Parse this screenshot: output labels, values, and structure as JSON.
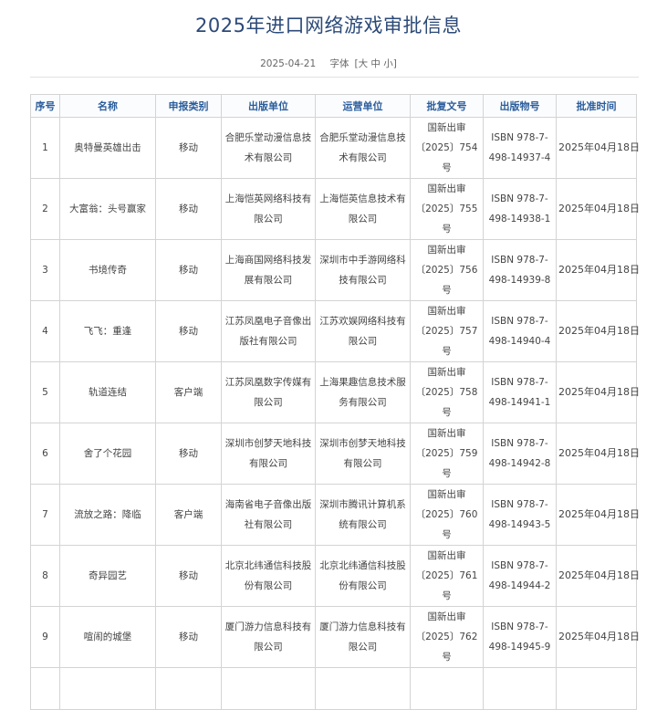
{
  "page": {
    "title": "2025年进口网络游戏审批信息",
    "date": "2025-04-21",
    "font_size_label": "字体",
    "font_size_options": "[大 中 小]"
  },
  "table": {
    "headers": [
      "序号",
      "名称",
      "申报类别",
      "出版单位",
      "运营单位",
      "批复文号",
      "出版物号",
      "批准时间"
    ],
    "rows": [
      [
        "1",
        "奥特曼英雄出击",
        "移动",
        "合肥乐堂动漫信息技术有限公司",
        "合肥乐堂动漫信息技术有限公司",
        "国新出审〔2025〕754号",
        "ISBN 978-7-498-14937-4",
        "2025年04月18日"
      ],
      [
        "2",
        "大富翁：头号赢家",
        "移动",
        "上海恺英网络科技有限公司",
        "上海恺英信息技术有限公司",
        "国新出审〔2025〕755号",
        "ISBN 978-7-498-14938-1",
        "2025年04月18日"
      ],
      [
        "3",
        "书境传奇",
        "移动",
        "上海商国网络科技发展有限公司",
        "深圳市中手游网络科技有限公司",
        "国新出审〔2025〕756号",
        "ISBN 978-7-498-14939-8",
        "2025年04月18日"
      ],
      [
        "4",
        "飞飞：重逢",
        "移动",
        "江苏凤凰电子音像出版社有限公司",
        "江苏欢娱网络科技有限公司",
        "国新出审〔2025〕757号",
        "ISBN 978-7-498-14940-4",
        "2025年04月18日"
      ],
      [
        "5",
        "轨道连结",
        "客户端",
        "江苏凤凰数字传媒有限公司",
        "上海果趣信息技术服务有限公司",
        "国新出审〔2025〕758号",
        "ISBN 978-7-498-14941-1",
        "2025年04月18日"
      ],
      [
        "6",
        "舍了个花园",
        "移动",
        "深圳市创梦天地科技有限公司",
        "深圳市创梦天地科技有限公司",
        "国新出审〔2025〕759号",
        "ISBN 978-7-498-14942-8",
        "2025年04月18日"
      ],
      [
        "7",
        "流放之路：降临",
        "客户端",
        "海南省电子音像出版社有限公司",
        "深圳市腾讯计算机系统有限公司",
        "国新出审〔2025〕760号",
        "ISBN 978-7-498-14943-5",
        "2025年04月18日"
      ],
      [
        "8",
        "奇异园艺",
        "移动",
        "北京北纬通信科技股份有限公司",
        "北京北纬通信科技股份有限公司",
        "国新出审〔2025〕761号",
        "ISBN 978-7-498-14944-2",
        "2025年04月18日"
      ],
      [
        "9",
        "喧闹的城堡",
        "移动",
        "厦门游力信息科技有限公司",
        "厦门游力信息科技有限公司",
        "国新出审〔2025〕762号",
        "ISBN 978-7-498-14945-9",
        "2025年04月18日"
      ]
    ]
  }
}
